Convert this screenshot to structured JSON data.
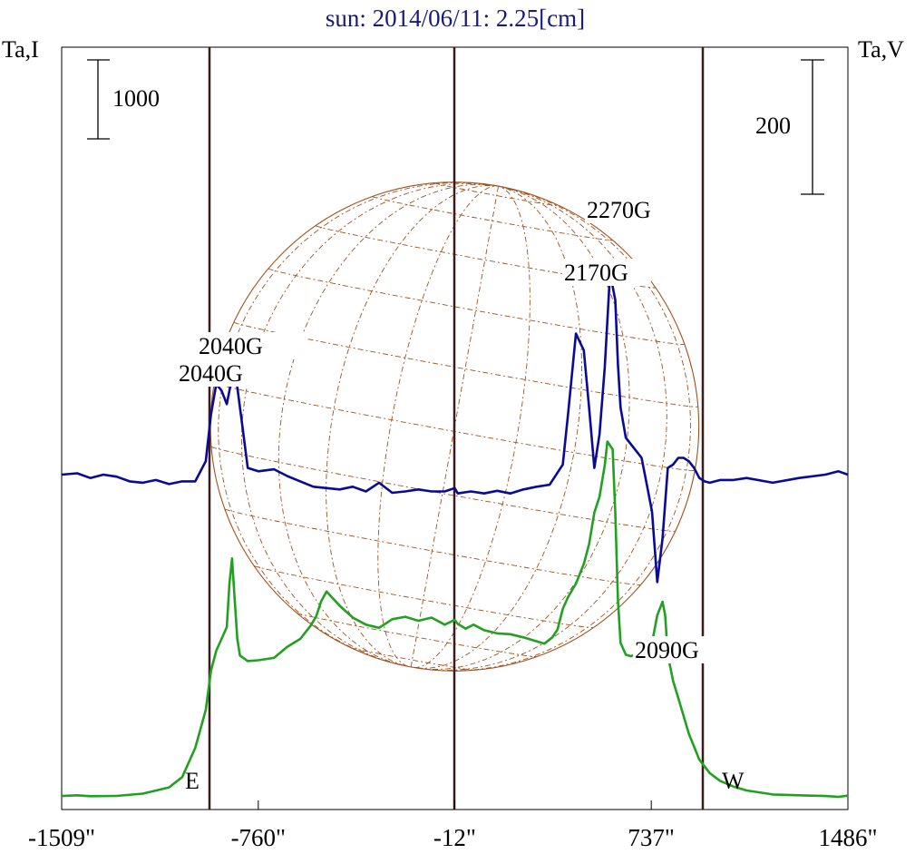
{
  "chart_data": {
    "type": "line",
    "title": "sun: 2014/06/11: 2.25[cm]",
    "ylabel_left": "Ta,I",
    "ylabel_right": "Ta,V",
    "x_ticks": [
      "-1509\"",
      "-760\"",
      "-12\"",
      "737\"",
      "1486\""
    ],
    "x_tick_values": [
      -1509,
      -760,
      -12,
      737,
      1486
    ],
    "xlim": [
      -1509,
      1486
    ],
    "limb_markers": [
      {
        "label": "E",
        "x": -947
      },
      {
        "label": "",
        "x": -12
      },
      {
        "label": "W",
        "x": 932
      }
    ],
    "scale_bars": [
      {
        "label": "1000",
        "side": "left"
      },
      {
        "label": "200",
        "side": "right"
      }
    ],
    "annotations": [
      {
        "text": "2040G",
        "near_series": "Ta,I",
        "x": -970
      },
      {
        "text": "2040G",
        "near_series": "Ta,V",
        "x": -990
      },
      {
        "text": "2270G",
        "near_series": "Ta,I",
        "x": 560
      },
      {
        "text": "2170G",
        "near_series": "Ta,V",
        "x": 590
      },
      {
        "text": "2090G",
        "near_series": "Ta,V",
        "x": 720
      }
    ],
    "series": [
      {
        "name": "Ta,I",
        "color": "#22a022",
        "scale_bar": "1000",
        "x": [
          -1509,
          -1450,
          -1400,
          -1300,
          -1200,
          -1100,
          -1050,
          -1000,
          -960,
          -940,
          -920,
          -900,
          -880,
          -870,
          -860,
          -850,
          -840,
          -830,
          -800,
          -760,
          -700,
          -650,
          -600,
          -560,
          -540,
          -520,
          -500,
          -450,
          -400,
          -350,
          -300,
          -250,
          -200,
          -150,
          -100,
          -50,
          -12,
          0,
          30,
          60,
          100,
          150,
          200,
          250,
          300,
          330,
          360,
          380,
          400,
          420,
          450,
          480,
          500,
          520,
          540,
          560,
          570,
          590,
          600,
          610,
          620,
          640,
          660,
          700,
          730,
          760,
          780,
          790,
          800,
          820,
          840,
          880,
          920,
          960,
          1000,
          1050,
          1100,
          1200,
          1300,
          1400,
          1450,
          1486
        ],
        "y": [
          10,
          20,
          8,
          12,
          40,
          120,
          250,
          620,
          1100,
          1600,
          1850,
          2000,
          2150,
          2700,
          3020,
          2500,
          2000,
          1790,
          1720,
          1730,
          1760,
          1900,
          2000,
          2170,
          2280,
          2480,
          2600,
          2420,
          2270,
          2180,
          2140,
          2250,
          2280,
          2230,
          2270,
          2180,
          2240,
          2190,
          2130,
          2180,
          2110,
          2070,
          2060,
          2020,
          1970,
          1940,
          2020,
          2120,
          2380,
          2530,
          2700,
          2950,
          3200,
          3600,
          3800,
          4200,
          4500,
          4400,
          3600,
          2500,
          1950,
          1800,
          1780,
          1840,
          1780,
          2300,
          2470,
          2300,
          1800,
          1470,
          1250,
          800,
          470,
          300,
          200,
          130,
          80,
          30,
          20,
          10,
          0,
          15
        ]
      },
      {
        "name": "Ta,V",
        "color": "#0a0a96",
        "scale_bar": "200",
        "x": [
          -1509,
          -1450,
          -1400,
          -1350,
          -1300,
          -1250,
          -1200,
          -1150,
          -1100,
          -1050,
          -1000,
          -960,
          -940,
          -920,
          -900,
          -880,
          -860,
          -850,
          -840,
          -820,
          -800,
          -760,
          -700,
          -650,
          -600,
          -550,
          -500,
          -450,
          -400,
          -350,
          -300,
          -250,
          -200,
          -150,
          -100,
          -50,
          -12,
          0,
          50,
          100,
          150,
          200,
          250,
          300,
          350,
          400,
          420,
          450,
          480,
          500,
          520,
          540,
          560,
          580,
          600,
          610,
          620,
          640,
          660,
          680,
          700,
          720,
          740,
          760,
          780,
          800,
          820,
          840,
          860,
          880,
          900,
          920,
          940,
          960,
          980,
          1000,
          1050,
          1100,
          1200,
          1300,
          1400,
          1450,
          1486
        ],
        "y": [
          0,
          2,
          -5,
          0,
          -3,
          -10,
          -12,
          -8,
          -14,
          -10,
          -10,
          20,
          90,
          135,
          125,
          105,
          145,
          165,
          130,
          70,
          10,
          5,
          8,
          -2,
          -10,
          -18,
          -20,
          -22,
          -18,
          -25,
          -12,
          -27,
          -25,
          -22,
          -25,
          -25,
          -20,
          -28,
          -25,
          -28,
          -24,
          -28,
          -22,
          -18,
          -15,
          15,
          90,
          210,
          185,
          100,
          10,
          60,
          160,
          300,
          260,
          165,
          100,
          55,
          45,
          35,
          25,
          -15,
          -55,
          -160,
          -95,
          10,
          15,
          25,
          25,
          20,
          10,
          -5,
          -10,
          -12,
          -10,
          -8,
          -8,
          -5,
          -12,
          -5,
          0,
          5,
          0
        ]
      }
    ]
  }
}
